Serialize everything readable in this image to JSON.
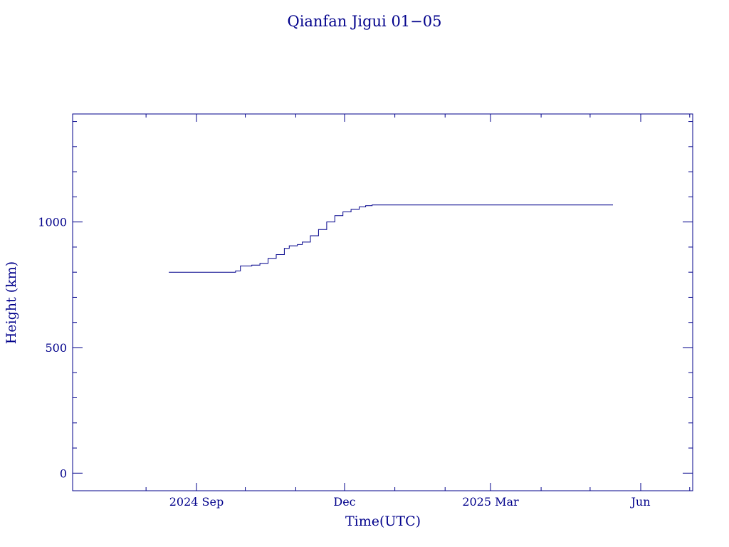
{
  "chart_data": {
    "type": "line",
    "title": "Qianfan Jigui 01−05",
    "xlabel": "Time(UTC)",
    "ylabel": "Height (km)",
    "color": "#00008b",
    "x_ticks": [
      {
        "date": "2024-09-01",
        "label": "2024 Sep"
      },
      {
        "date": "2024-12-01",
        "label": "Dec"
      },
      {
        "date": "2025-03-01",
        "label": "2025 Mar"
      },
      {
        "date": "2025-06-01",
        "label": "Jun"
      }
    ],
    "x_range": [
      "2024-07-15",
      "2025-06-30"
    ],
    "y_ticks": [
      0,
      500,
      1000
    ],
    "ylim": [
      -70,
      1430
    ],
    "series": [
      {
        "points": [
          [
            "2024-08-15",
            800
          ],
          [
            "2024-09-15",
            800
          ],
          [
            "2024-09-25",
            805
          ],
          [
            "2024-09-28",
            825
          ],
          [
            "2024-10-05",
            828
          ],
          [
            "2024-10-10",
            835
          ],
          [
            "2024-10-15",
            855
          ],
          [
            "2024-10-20",
            870
          ],
          [
            "2024-10-25",
            895
          ],
          [
            "2024-10-28",
            905
          ],
          [
            "2024-11-02",
            910
          ],
          [
            "2024-11-05",
            920
          ],
          [
            "2024-11-10",
            945
          ],
          [
            "2024-11-15",
            970
          ],
          [
            "2024-11-20",
            1000
          ],
          [
            "2024-11-25",
            1025
          ],
          [
            "2024-11-30",
            1040
          ],
          [
            "2024-12-05",
            1050
          ],
          [
            "2024-12-10",
            1060
          ],
          [
            "2024-12-14",
            1065
          ],
          [
            "2024-12-18",
            1068
          ],
          [
            "2025-05-15",
            1068
          ]
        ]
      }
    ]
  }
}
